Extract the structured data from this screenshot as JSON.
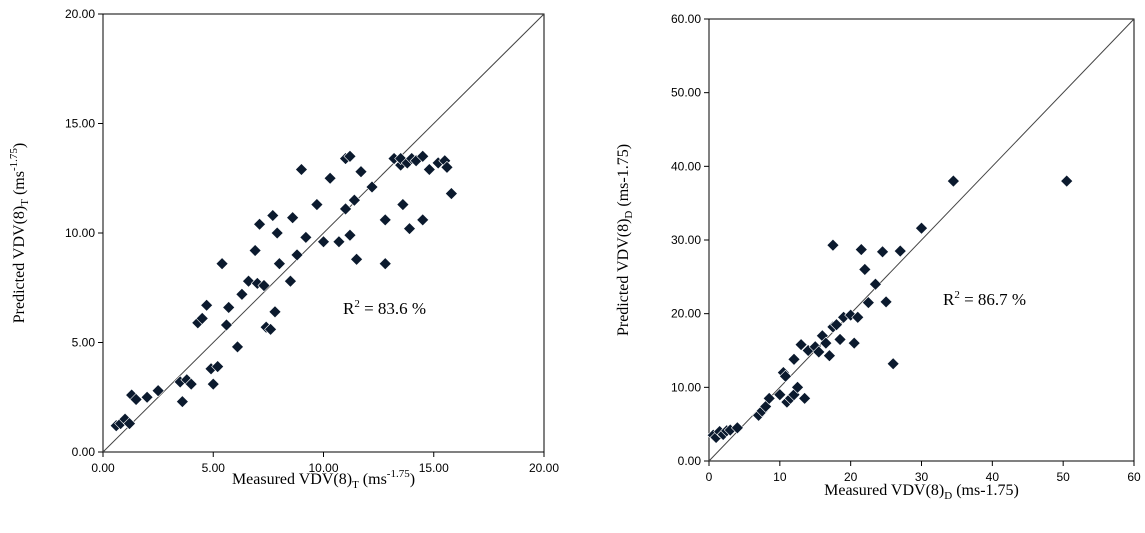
{
  "chart_data": [
    {
      "type": "scatter",
      "xlabel": {
        "main": "Measured VDV(8)",
        "sub": "T",
        "unit_pre": " (ms",
        "unit_sup": "-1.75",
        "unit_post": ")"
      },
      "ylabel": {
        "main": "Predicted VDV(8)",
        "sub": "T",
        "unit_pre": "  (ms",
        "unit_sup": "-1.75",
        "unit_post": ")"
      },
      "xlim": [
        0,
        20
      ],
      "ylim": [
        0,
        20
      ],
      "xticks": [
        "0.00",
        "5.00",
        "10.00",
        "15.00",
        "20.00"
      ],
      "yticks": [
        "0.00",
        "5.00",
        "10.00",
        "15.00",
        "20.00"
      ],
      "annotation": {
        "pre": "R",
        "sup": "2",
        "post": " = 83.6 %"
      },
      "reference_line": "y = x",
      "marker_color": "#0b1a2e",
      "points": [
        [
          0.6,
          1.2
        ],
        [
          0.8,
          1.3
        ],
        [
          1.0,
          1.5
        ],
        [
          1.2,
          1.3
        ],
        [
          1.3,
          2.6
        ],
        [
          1.5,
          2.4
        ],
        [
          2.0,
          2.5
        ],
        [
          2.5,
          2.8
        ],
        [
          3.5,
          3.2
        ],
        [
          3.6,
          2.3
        ],
        [
          3.8,
          3.3
        ],
        [
          4.0,
          3.1
        ],
        [
          4.3,
          5.9
        ],
        [
          4.5,
          6.1
        ],
        [
          4.7,
          6.7
        ],
        [
          4.9,
          3.8
        ],
        [
          5.0,
          3.1
        ],
        [
          5.2,
          3.9
        ],
        [
          5.4,
          8.6
        ],
        [
          5.6,
          5.8
        ],
        [
          5.7,
          6.6
        ],
        [
          6.1,
          4.8
        ],
        [
          6.3,
          7.2
        ],
        [
          6.6,
          7.8
        ],
        [
          6.9,
          9.2
        ],
        [
          7.0,
          7.7
        ],
        [
          7.1,
          10.4
        ],
        [
          7.3,
          7.6
        ],
        [
          7.4,
          5.7
        ],
        [
          7.6,
          5.6
        ],
        [
          7.7,
          10.8
        ],
        [
          7.8,
          6.4
        ],
        [
          7.9,
          10.0
        ],
        [
          8.0,
          8.6
        ],
        [
          8.5,
          7.8
        ],
        [
          8.6,
          10.7
        ],
        [
          8.8,
          9.0
        ],
        [
          9.0,
          12.9
        ],
        [
          9.2,
          9.8
        ],
        [
          9.7,
          11.3
        ],
        [
          10.0,
          9.6
        ],
        [
          10.3,
          12.5
        ],
        [
          10.7,
          9.6
        ],
        [
          11.0,
          11.1
        ],
        [
          11.0,
          13.4
        ],
        [
          11.2,
          13.5
        ],
        [
          11.2,
          9.9
        ],
        [
          11.4,
          11.5
        ],
        [
          11.5,
          8.8
        ],
        [
          11.7,
          12.8
        ],
        [
          12.2,
          12.1
        ],
        [
          12.8,
          8.6
        ],
        [
          12.8,
          10.6
        ],
        [
          13.2,
          13.4
        ],
        [
          13.5,
          13.1
        ],
        [
          13.5,
          13.4
        ],
        [
          13.6,
          11.3
        ],
        [
          13.8,
          13.2
        ],
        [
          13.9,
          10.2
        ],
        [
          14.0,
          13.4
        ],
        [
          14.2,
          13.3
        ],
        [
          14.5,
          13.5
        ],
        [
          14.5,
          10.6
        ],
        [
          14.8,
          12.9
        ],
        [
          15.2,
          13.2
        ],
        [
          15.5,
          13.3
        ],
        [
          15.6,
          13.0
        ],
        [
          15.8,
          11.8
        ]
      ]
    },
    {
      "type": "scatter",
      "xlabel": {
        "main": "Measured VDV(8)",
        "sub": "D",
        "unit_pre": " (ms-1.75)",
        "unit_sup": "",
        "unit_post": ""
      },
      "ylabel": {
        "main": "Predicted VDV(8)",
        "sub": "D",
        "unit_pre": " (ms-1.75)",
        "unit_sup": "",
        "unit_post": ""
      },
      "xlim": [
        0,
        60
      ],
      "ylim": [
        0,
        60
      ],
      "xticks": [
        "0",
        "10",
        "20",
        "30",
        "40",
        "50",
        "60"
      ],
      "yticks": [
        "0.00",
        "10.00",
        "20.00",
        "30.00",
        "40.00",
        "50.00",
        "60.00"
      ],
      "annotation": {
        "pre": "R",
        "sup": "2",
        "post": " = 86.7 %"
      },
      "reference_line": "y = x",
      "marker_color": "#0b1a2e",
      "points": [
        [
          0.6,
          3.5
        ],
        [
          1.0,
          3.2
        ],
        [
          1.5,
          4.0
        ],
        [
          2.0,
          3.6
        ],
        [
          2.5,
          4.1
        ],
        [
          3.0,
          4.2
        ],
        [
          4.0,
          4.5
        ],
        [
          7.0,
          6.2
        ],
        [
          7.5,
          6.8
        ],
        [
          8.0,
          7.4
        ],
        [
          8.5,
          8.5
        ],
        [
          10.0,
          9.0
        ],
        [
          10.5,
          12.0
        ],
        [
          10.8,
          11.5
        ],
        [
          11.0,
          8.0
        ],
        [
          11.5,
          8.5
        ],
        [
          12.0,
          9.0
        ],
        [
          12.0,
          13.8
        ],
        [
          12.5,
          10.0
        ],
        [
          13.0,
          15.8
        ],
        [
          13.5,
          8.5
        ],
        [
          14.0,
          15.0
        ],
        [
          15.0,
          15.5
        ],
        [
          15.5,
          14.8
        ],
        [
          16.0,
          17.0
        ],
        [
          16.5,
          16.0
        ],
        [
          17.0,
          14.3
        ],
        [
          17.5,
          18.2
        ],
        [
          17.5,
          29.3
        ],
        [
          18.0,
          18.5
        ],
        [
          18.5,
          16.5
        ],
        [
          19.0,
          19.5
        ],
        [
          20.0,
          19.8
        ],
        [
          20.5,
          16.0
        ],
        [
          21.0,
          19.5
        ],
        [
          21.5,
          28.7
        ],
        [
          22.0,
          26.0
        ],
        [
          22.5,
          21.5
        ],
        [
          23.5,
          24.0
        ],
        [
          24.5,
          28.4
        ],
        [
          25.0,
          21.6
        ],
        [
          26.0,
          13.2
        ],
        [
          27.0,
          28.5
        ],
        [
          30.0,
          31.6
        ],
        [
          34.5,
          38.0
        ],
        [
          50.5,
          38.0
        ]
      ]
    }
  ]
}
